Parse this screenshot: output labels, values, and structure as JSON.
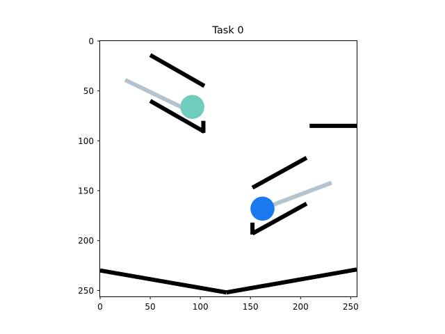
{
  "title": "Task 0",
  "axes": {
    "x_ticks": [
      "0",
      "50",
      "100",
      "150",
      "200",
      "250"
    ],
    "y_ticks": [
      "0",
      "50",
      "100",
      "150",
      "200",
      "250"
    ],
    "x_tick_values": [
      0,
      50,
      100,
      150,
      200,
      250
    ],
    "y_tick_values": [
      0,
      50,
      100,
      150,
      200,
      250
    ],
    "xlim": [
      0,
      256
    ],
    "ylim": [
      256,
      0
    ]
  },
  "scene": {
    "walls": [
      {
        "name": "upper-ramp-top-bar",
        "color": "#000000",
        "points": [
          [
            50,
            14
          ],
          [
            104,
            45
          ]
        ]
      },
      {
        "name": "upper-ramp-bottom-bar",
        "color": "#000000",
        "points": [
          [
            50,
            60
          ],
          [
            104,
            91
          ]
        ]
      },
      {
        "name": "upper-ramp-stopper",
        "color": "#000000",
        "points": [
          [
            103,
            80
          ],
          [
            103,
            92
          ]
        ]
      },
      {
        "name": "right-shelf",
        "color": "#000000",
        "points": [
          [
            209,
            85
          ],
          [
            256,
            85
          ]
        ]
      },
      {
        "name": "lower-ramp-top-bar",
        "color": "#000000",
        "points": [
          [
            152,
            147
          ],
          [
            206,
            117
          ]
        ]
      },
      {
        "name": "lower-ramp-bottom-bar",
        "color": "#000000",
        "points": [
          [
            152,
            193
          ],
          [
            206,
            163
          ]
        ]
      },
      {
        "name": "lower-ramp-stopper",
        "color": "#000000",
        "points": [
          [
            152,
            182
          ],
          [
            152,
            194
          ]
        ]
      },
      {
        "name": "floor-left-slope",
        "color": "#000000",
        "points": [
          [
            0,
            230
          ],
          [
            126,
            252
          ]
        ]
      },
      {
        "name": "floor-right-slope",
        "color": "#000000",
        "points": [
          [
            126,
            252
          ],
          [
            256,
            229
          ]
        ]
      }
    ],
    "sticks": [
      {
        "name": "upper-gray-stick",
        "color": "#b4c4cc",
        "points": [
          [
            25,
            39
          ],
          [
            91,
            71
          ]
        ]
      },
      {
        "name": "lower-gray-stick",
        "color": "#b4c4cc",
        "points": [
          [
            165,
            167
          ],
          [
            231,
            142
          ]
        ]
      }
    ],
    "balls": [
      {
        "name": "green-ball",
        "color": "#6ecdbb",
        "center": [
          92,
          66
        ],
        "radius": 12
      },
      {
        "name": "blue-ball",
        "color": "#1a78f0",
        "center": [
          162,
          168
        ],
        "radius": 12
      }
    ]
  }
}
